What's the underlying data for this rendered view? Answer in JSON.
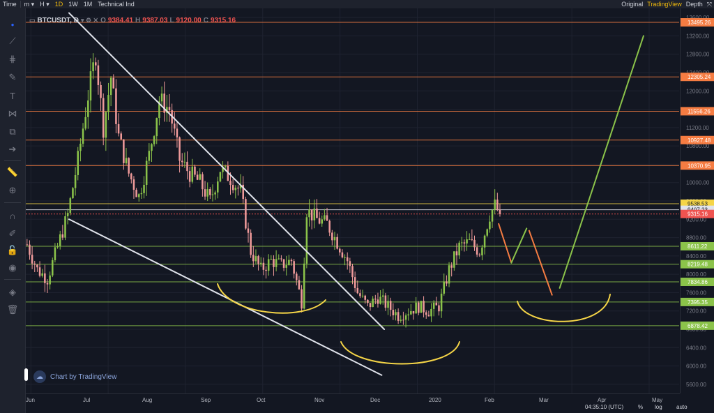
{
  "toolbar": {
    "items": [
      "Time",
      "m",
      "H",
      "1D",
      "1W",
      "1M",
      "Technical Ind"
    ],
    "active": "1D",
    "right": [
      "Original",
      "TradingView",
      "Depth"
    ],
    "right_active": "TradingView"
  },
  "legend": {
    "symbol": "BTCUSDT, D",
    "o_key": "O",
    "o": "9384.41",
    "h_key": "H",
    "h": "9387.03",
    "l_key": "L",
    "l": "9120.00",
    "c_key": "C",
    "c": "9315.16"
  },
  "watermark": "Chart by TradingView",
  "status": {
    "time": "04:35:10 (UTC)",
    "percent": "%",
    "log": "log",
    "auto": "auto"
  },
  "colors": {
    "bg": "#131722",
    "up": "#8bc34a",
    "down": "#ef9a9a",
    "orange": "#f57c42",
    "green": "#8bc34a",
    "yellow": "#f5d547",
    "white": "#e0e3eb",
    "red": "#ef5350"
  },
  "chart_data": {
    "type": "candlestick",
    "symbol": "BTCUSDT",
    "interval": "D",
    "xlabels": [
      "Jun",
      "Jul",
      "Aug",
      "Sep",
      "Oct",
      "Nov",
      "Dec",
      "2020",
      "Feb",
      "Mar",
      "Apr",
      "May"
    ],
    "ylim": [
      5400,
      13800
    ],
    "yticks": [
      5600,
      6000,
      6400,
      6800,
      7200,
      7600,
      8000,
      8400,
      8800,
      9200,
      9600,
      10000,
      10400,
      10800,
      11200,
      11600,
      12000,
      12400,
      12800,
      13200,
      13600
    ],
    "price_close_series": [
      {
        "t": 0,
        "v": 8650
      },
      {
        "t": 4,
        "v": 8100
      },
      {
        "t": 8,
        "v": 7900
      },
      {
        "t": 12,
        "v": 8600
      },
      {
        "t": 16,
        "v": 9300
      },
      {
        "t": 20,
        "v": 10500
      },
      {
        "t": 24,
        "v": 11900
      },
      {
        "t": 27,
        "v": 12800
      },
      {
        "t": 30,
        "v": 11200
      },
      {
        "t": 33,
        "v": 12300
      },
      {
        "t": 36,
        "v": 11000
      },
      {
        "t": 40,
        "v": 10200
      },
      {
        "t": 44,
        "v": 9700
      },
      {
        "t": 48,
        "v": 10600
      },
      {
        "t": 52,
        "v": 11800
      },
      {
        "t": 56,
        "v": 11600
      },
      {
        "t": 60,
        "v": 10500
      },
      {
        "t": 64,
        "v": 10200
      },
      {
        "t": 68,
        "v": 10000
      },
      {
        "t": 72,
        "v": 9600
      },
      {
        "t": 76,
        "v": 10300
      },
      {
        "t": 80,
        "v": 10100
      },
      {
        "t": 84,
        "v": 9800
      },
      {
        "t": 88,
        "v": 8500
      },
      {
        "t": 92,
        "v": 8100
      },
      {
        "t": 96,
        "v": 8300
      },
      {
        "t": 100,
        "v": 8200
      },
      {
        "t": 104,
        "v": 8300
      },
      {
        "t": 108,
        "v": 7400
      },
      {
        "t": 110,
        "v": 9400
      },
      {
        "t": 114,
        "v": 9200
      },
      {
        "t": 118,
        "v": 9100
      },
      {
        "t": 122,
        "v": 8700
      },
      {
        "t": 126,
        "v": 8300
      },
      {
        "t": 130,
        "v": 7600
      },
      {
        "t": 134,
        "v": 7300
      },
      {
        "t": 138,
        "v": 7500
      },
      {
        "t": 142,
        "v": 7300
      },
      {
        "t": 146,
        "v": 7100
      },
      {
        "t": 150,
        "v": 7200
      },
      {
        "t": 154,
        "v": 7300
      },
      {
        "t": 158,
        "v": 7200
      },
      {
        "t": 162,
        "v": 7300
      },
      {
        "t": 166,
        "v": 8100
      },
      {
        "t": 170,
        "v": 8600
      },
      {
        "t": 174,
        "v": 8700
      },
      {
        "t": 178,
        "v": 8500
      },
      {
        "t": 182,
        "v": 9300
      },
      {
        "t": 184,
        "v": 9500
      },
      {
        "t": 186,
        "v": 9315
      }
    ],
    "horizontal_levels": [
      {
        "value": 13495.26,
        "color": "orange"
      },
      {
        "value": 12305.24,
        "color": "orange"
      },
      {
        "value": 11556.26,
        "color": "orange"
      },
      {
        "value": 10927.48,
        "color": "orange"
      },
      {
        "value": 10370.95,
        "color": "orange"
      },
      {
        "value": 9538.53,
        "color": "yellow"
      },
      {
        "value": 9407.23,
        "color": "white"
      },
      {
        "value": 9315.16,
        "color": "red"
      },
      {
        "value": 8611.22,
        "color": "green"
      },
      {
        "value": 8219.48,
        "color": "green"
      },
      {
        "value": 7834.86,
        "color": "green"
      },
      {
        "value": 7395.35,
        "color": "green"
      },
      {
        "value": 6878.42,
        "color": "green"
      }
    ],
    "level_labels": [
      "13495.26",
      "12305.24",
      "11556.26",
      "10927.48",
      "10370.95",
      "9538.53",
      "9407.23",
      "9315.16",
      "8611.22",
      "8219.48",
      "7834.86",
      "7395.35",
      "6878.42"
    ],
    "drawings": [
      {
        "type": "trendline",
        "color": "white",
        "from": [
          17,
          13700
        ],
        "to": [
          141,
          6800
        ]
      },
      {
        "type": "trendline",
        "color": "white",
        "from": [
          17,
          9200
        ],
        "to": [
          140,
          5800
        ]
      },
      {
        "type": "projection",
        "color": "orange",
        "from": [
          186,
          9100
        ],
        "to": [
          191,
          8250
        ]
      },
      {
        "type": "projection",
        "color": "green",
        "from": [
          191,
          8250
        ],
        "to": [
          197,
          9000
        ]
      },
      {
        "type": "projection",
        "color": "orange",
        "from": [
          198,
          8950
        ],
        "to": [
          207,
          7550
        ]
      },
      {
        "type": "projection",
        "color": "green",
        "from": [
          210,
          7700
        ],
        "to": [
          243,
          13200
        ]
      }
    ],
    "xlim": [
      0,
      257
    ]
  }
}
